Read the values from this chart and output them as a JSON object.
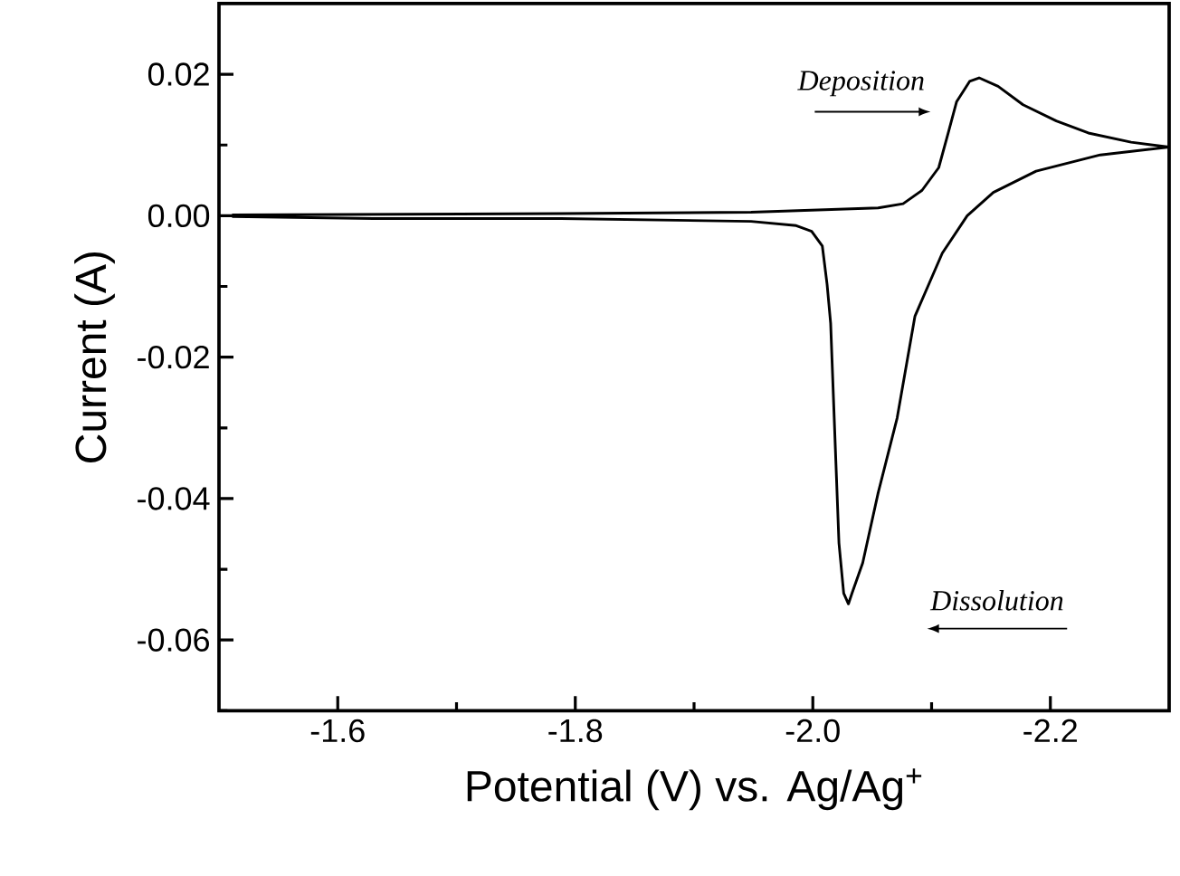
{
  "chart_data": {
    "type": "line",
    "xlabel": "Potential (V) vs. Ag/Ag$^{+}$",
    "ylabel": "Current (A)",
    "xlim": [
      -1.5,
      -2.3
    ],
    "ylim": [
      -0.07,
      0.03
    ],
    "xticks": [
      -1.6,
      {
        "value": -1.7,
        "label": null
      },
      -1.8,
      {
        "value": -1.9,
        "label": null
      },
      {
        "value": -2.0,
        "label": "-2.0"
      },
      {
        "value": -2.1,
        "label": null
      },
      -2.2
    ],
    "yticks": [
      {
        "value": -0.07,
        "label": null
      },
      -0.06,
      {
        "value": -0.05,
        "label": null
      },
      -0.04,
      {
        "value": -0.03,
        "label": null
      },
      -0.02,
      {
        "value": -0.01,
        "label": null
      },
      {
        "value": 0.0,
        "label": "0.00"
      },
      {
        "value": 0.01,
        "label": null
      },
      0.02
    ],
    "annotations": [
      "Deposition",
      "Dissolution"
    ],
    "series": [
      {
        "color": "#000000",
        "x": [
          -1.511,
          -1.788,
          -1.948,
          -2.055,
          -2.076,
          -2.092,
          -2.106,
          -2.114,
          -2.121,
          -2.132,
          -2.14,
          -2.156,
          -2.177,
          -2.205,
          -2.232,
          -2.268,
          -2.3,
          -2.242,
          -2.188,
          -2.152,
          -2.13,
          -2.109,
          -2.086,
          -2.071,
          -2.055,
          -2.042,
          -2.033,
          -2.03,
          -2.026,
          -2.022,
          -2.019,
          -2.015,
          -2.012,
          -2.008,
          -1.999,
          -1.986,
          -1.948,
          -1.788,
          -1.63,
          -1.511
        ],
        "values": [
          0.0001,
          0.0003,
          0.0005,
          0.0011,
          0.0017,
          0.0036,
          0.0068,
          0.0117,
          0.0161,
          0.019,
          0.0195,
          0.0183,
          0.0157,
          0.0134,
          0.0117,
          0.0104,
          0.0097,
          0.0086,
          0.0063,
          0.0033,
          0.0,
          -0.0053,
          -0.0142,
          -0.0286,
          -0.0392,
          -0.0491,
          -0.0534,
          -0.0549,
          -0.0534,
          -0.0463,
          -0.033,
          -0.0152,
          -0.0097,
          -0.0043,
          -0.0022,
          -0.0014,
          -0.0008,
          -0.0004,
          -0.0004,
          -0.0001
        ]
      }
    ]
  }
}
